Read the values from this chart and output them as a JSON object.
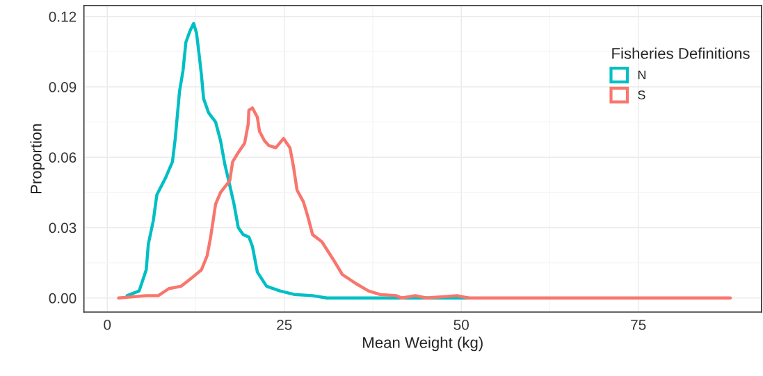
{
  "chart_data": {
    "type": "line",
    "xlabel": "Mean Weight (kg)",
    "ylabel": "Proportion",
    "legend_title": "Fisheries Definitions",
    "xlim": [
      -3.3,
      92.4
    ],
    "ylim": [
      -0.006,
      0.1246
    ],
    "xticks": [
      0,
      25,
      50,
      75
    ],
    "yticks": [
      {
        "value": 0,
        "label": "0.00"
      },
      {
        "value": 0.03,
        "label": "0.03"
      },
      {
        "value": 0.06,
        "label": "0.06"
      },
      {
        "value": 0.09,
        "label": "0.09"
      },
      {
        "value": 0.12,
        "label": "0.12"
      }
    ],
    "grid": true,
    "legend": "top right",
    "marker": "none",
    "line_style": "solid",
    "series": [
      {
        "name": "N",
        "color": "#00bfc4",
        "x": [
          2.8,
          4.5,
          5.5,
          5.8,
          6.5,
          7.0,
          8.2,
          9.2,
          9.6,
          9.9,
          10.2,
          10.7,
          11.1,
          11.7,
          12.2,
          12.6,
          13.0,
          13.3,
          13.6,
          14.3,
          15.3,
          16.0,
          16.6,
          17.3,
          17.9,
          18.5,
          19.2,
          20.0,
          20.5,
          21.2,
          22.5,
          24.4,
          26.4,
          29.0,
          31.0,
          51.0
        ],
        "values": [
          0.001,
          0.003,
          0.012,
          0.023,
          0.033,
          0.044,
          0.051,
          0.058,
          0.068,
          0.078,
          0.088,
          0.097,
          0.109,
          0.114,
          0.117,
          0.113,
          0.103,
          0.095,
          0.085,
          0.079,
          0.075,
          0.067,
          0.057,
          0.048,
          0.04,
          0.03,
          0.027,
          0.026,
          0.022,
          0.011,
          0.005,
          0.003,
          0.0015,
          0.001,
          0.0,
          0.0
        ]
      },
      {
        "name": "S",
        "color": "#f8766d",
        "x": [
          1.6,
          5.5,
          7.2,
          8.7,
          10.4,
          12.1,
          13.3,
          14.1,
          14.6,
          15.0,
          15.3,
          16.0,
          17.3,
          17.7,
          18.5,
          19.4,
          19.9,
          20.0,
          20.5,
          21.2,
          21.5,
          22.2,
          22.8,
          23.8,
          24.9,
          25.8,
          26.3,
          26.8,
          27.7,
          28.3,
          29.0,
          30.3,
          32.0,
          33.2,
          35.2,
          36.9,
          38.5,
          40.8,
          41.6,
          43.5,
          45.1,
          49.4,
          51.0,
          88.0
        ],
        "values": [
          0.0,
          0.001,
          0.001,
          0.004,
          0.005,
          0.009,
          0.012,
          0.018,
          0.026,
          0.034,
          0.04,
          0.045,
          0.05,
          0.058,
          0.062,
          0.066,
          0.074,
          0.08,
          0.081,
          0.077,
          0.071,
          0.067,
          0.065,
          0.064,
          0.068,
          0.064,
          0.056,
          0.046,
          0.041,
          0.035,
          0.027,
          0.024,
          0.016,
          0.01,
          0.006,
          0.003,
          0.0015,
          0.001,
          0.0,
          0.001,
          0.0,
          0.001,
          0.0,
          0.0
        ]
      }
    ]
  }
}
